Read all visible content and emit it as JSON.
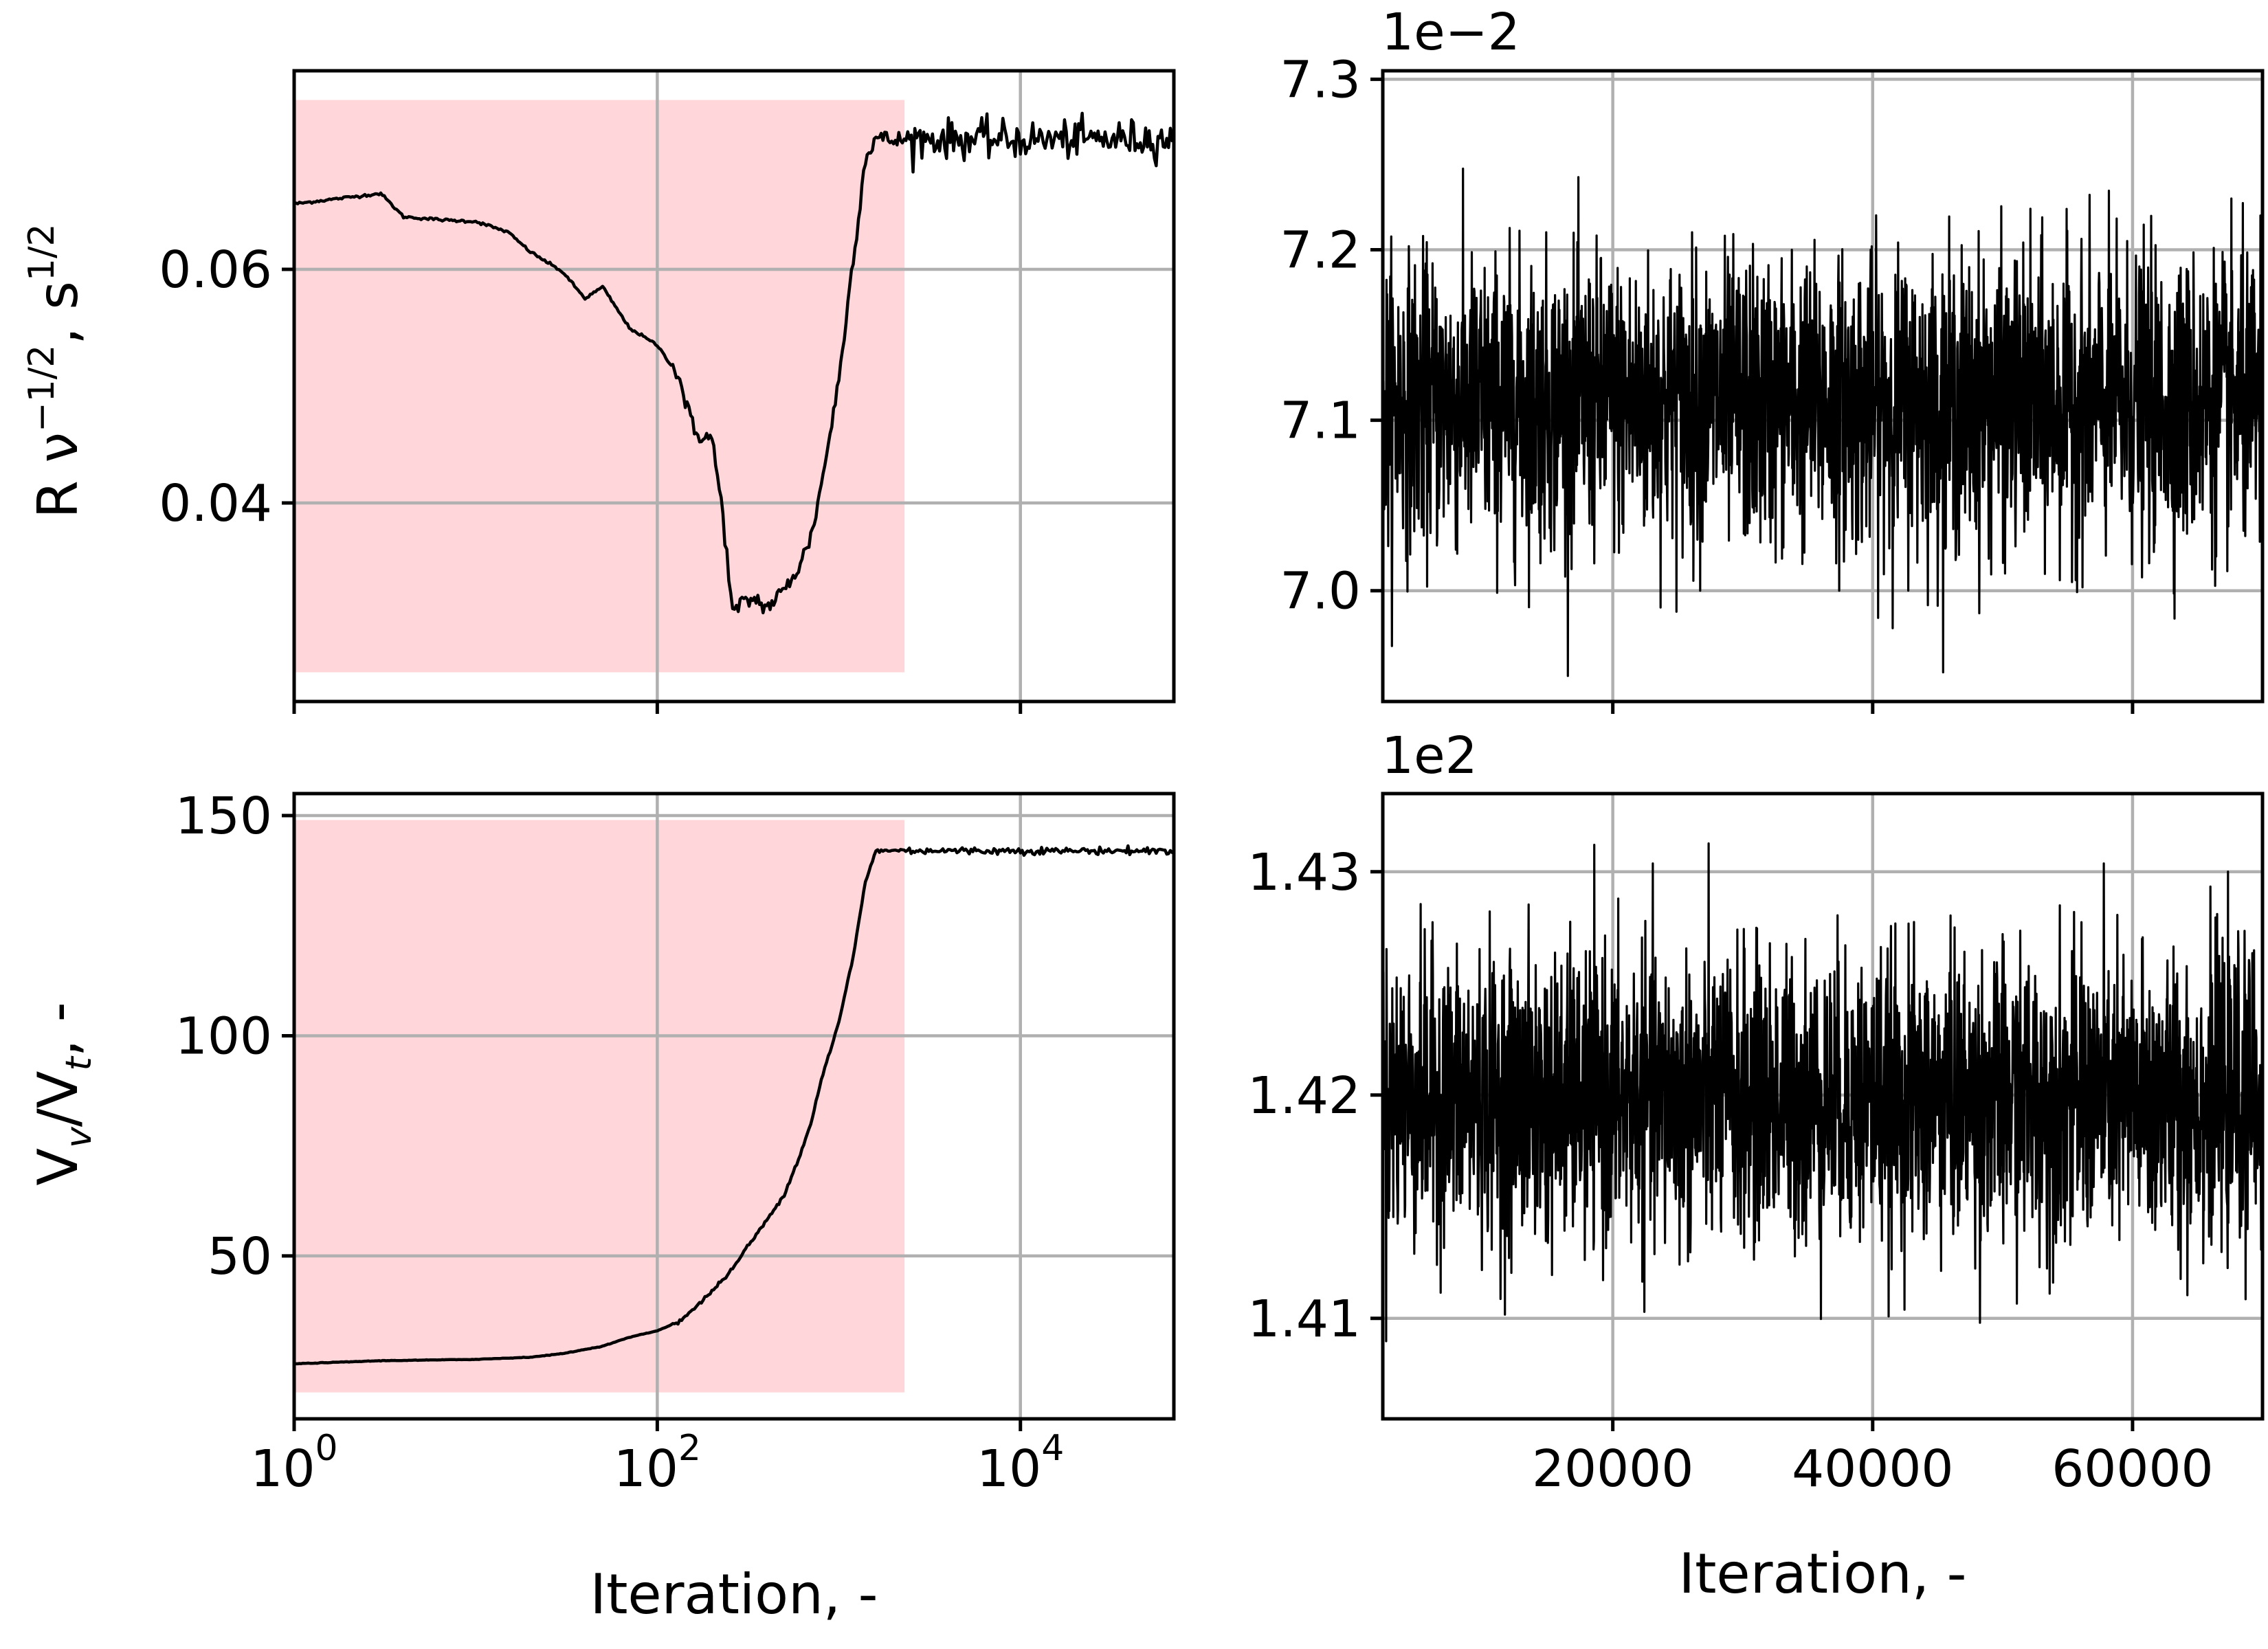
{
  "chart_data": [
    {
      "id": "top-left",
      "type": "line",
      "x_scale": "log",
      "xlim": [
        1,
        70000
      ],
      "ylim": [
        0.023,
        0.077
      ],
      "x_ticks": [
        {
          "v": 1,
          "b": "10",
          "e": "0"
        },
        {
          "v": 100,
          "b": "10",
          "e": "2"
        },
        {
          "v": 10000,
          "b": "10",
          "e": "4"
        }
      ],
      "show_x_tick_labels": false,
      "y_ticks": [
        {
          "v": 0.04,
          "label": "0.04"
        },
        {
          "v": 0.06,
          "label": "0.06"
        }
      ],
      "ylabel": {
        "base": "R ν",
        "exp1": "−1/2",
        "mid": ", s",
        "exp2": "1/2"
      },
      "grid": true,
      "shaded_region": {
        "x": [
          1,
          2300
        ],
        "y": [
          0.0255,
          0.0745
        ],
        "color": "#ffd6d9"
      },
      "series": [
        {
          "x": [
            1,
            3,
            4,
            7,
            10,
            15,
            20,
            30,
            40,
            50,
            70,
            100,
            130,
            160,
            200,
            230,
            260,
            300,
            350,
            400,
            500,
            600,
            700,
            800,
            1000,
            1200,
            1400,
            1600,
            2000,
            3000,
            10000,
            70000
          ],
          "y": [
            0.0656,
            0.0665,
            0.0645,
            0.0642,
            0.0641,
            0.0632,
            0.0615,
            0.0598,
            0.0575,
            0.0585,
            0.055,
            0.0535,
            0.051,
            0.046,
            0.0455,
            0.039,
            0.0305,
            0.0315,
            0.0318,
            0.031,
            0.0325,
            0.0345,
            0.037,
            0.0415,
            0.0505,
            0.061,
            0.0695,
            0.0713,
            0.071,
            0.0712,
            0.0711,
            0.0712
          ],
          "noise": 0.0008
        }
      ]
    },
    {
      "id": "top-right",
      "type": "line",
      "xlim": [
        2300,
        70000
      ],
      "ylim": [
        6.935,
        7.305
      ],
      "offset_text": "1e−2",
      "x_ticks": [
        {
          "v": 20000,
          "label": "20000"
        },
        {
          "v": 40000,
          "label": "40000"
        },
        {
          "v": 60000,
          "label": "60000"
        }
      ],
      "show_x_tick_labels": false,
      "y_ticks": [
        {
          "v": 7.0,
          "label": "7.0"
        },
        {
          "v": 7.1,
          "label": "7.1"
        },
        {
          "v": 7.2,
          "label": "7.2"
        },
        {
          "v": 7.3,
          "label": "7.3"
        }
      ],
      "grid": true,
      "series": [
        {
          "mean": 7.11,
          "spread": 0.042,
          "min": 6.95,
          "max": 7.265,
          "samples": 2600
        }
      ]
    },
    {
      "id": "bottom-left",
      "type": "line",
      "x_scale": "log",
      "xlim": [
        1,
        70000
      ],
      "ylim": [
        13,
        155
      ],
      "x_ticks": [
        {
          "v": 1,
          "b": "10",
          "e": "0"
        },
        {
          "v": 100,
          "b": "10",
          "e": "2"
        },
        {
          "v": 10000,
          "b": "10",
          "e": "4"
        }
      ],
      "show_x_tick_labels": true,
      "y_ticks": [
        {
          "v": 50,
          "label": "50"
        },
        {
          "v": 100,
          "label": "100"
        },
        {
          "v": 150,
          "label": "150"
        }
      ],
      "xlabel": "Iteration, -",
      "ylabel": {
        "p1": "V",
        "s1": "v",
        "p2": "/V",
        "s2": "t",
        "p3": ", -"
      },
      "grid": true,
      "shaded_region": {
        "x": [
          1,
          2300
        ],
        "y": [
          19,
          149
        ],
        "color": "#ffd6d9"
      },
      "series": [
        {
          "x": [
            1,
            3,
            10,
            20,
            30,
            50,
            70,
            100,
            130,
            160,
            200,
            260,
            300,
            400,
            500,
            600,
            700,
            800,
            1000,
            1200,
            1400,
            1600,
            2000,
            5000,
            70000
          ],
          "y": [
            25.5,
            26.2,
            26.5,
            27,
            27.8,
            29.5,
            31.5,
            33,
            35,
            38,
            42,
            47,
            51,
            58,
            64,
            72,
            80,
            90,
            103,
            118,
            135,
            142,
            142.1,
            142,
            142
          ],
          "noise": 0.4
        }
      ]
    },
    {
      "id": "bottom-right",
      "type": "line",
      "xlim": [
        2300,
        70000
      ],
      "ylim": [
        1.4055,
        1.4335
      ],
      "offset_text": "1e2",
      "x_ticks": [
        {
          "v": 20000,
          "label": "20000"
        },
        {
          "v": 40000,
          "label": "40000"
        },
        {
          "v": 60000,
          "label": "60000"
        }
      ],
      "show_x_tick_labels": true,
      "y_ticks": [
        {
          "v": 1.41,
          "label": "1.41"
        },
        {
          "v": 1.42,
          "label": "1.42"
        },
        {
          "v": 1.43,
          "label": "1.43"
        }
      ],
      "xlabel": "Iteration, -",
      "grid": true,
      "series": [
        {
          "mean": 1.4198,
          "spread": 0.0032,
          "min": 1.4068,
          "max": 1.4325,
          "samples": 2600
        }
      ]
    }
  ]
}
